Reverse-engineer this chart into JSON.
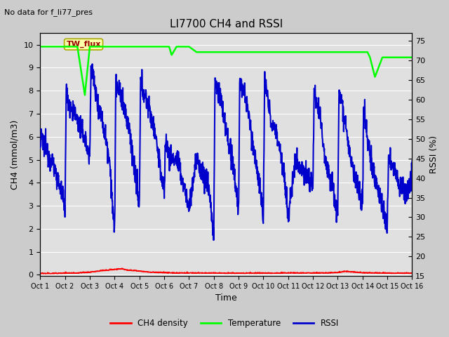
{
  "title": "LI7700 CH4 and RSSI",
  "subtitle": "No data for f_li77_pres",
  "xlabel": "Time",
  "ylabel_left": "CH4 (mmol/m3)",
  "ylabel_right": "RSSI (%)",
  "annotation": "TW_flux",
  "x_tick_labels": [
    "Oct 1",
    "Oct 2",
    "Oct 3",
    "Oct 4",
    "Oct 5",
    "Oct 6",
    "Oct 7",
    "Oct 8",
    "Oct 9",
    "Oct 10",
    "Oct 11",
    "Oct 12",
    "Oct 13",
    "Oct 14",
    "Oct 15",
    "Oct 16"
  ],
  "ylim_left": [
    -0.05,
    10.5
  ],
  "ylim_right": [
    15,
    77
  ],
  "yticks_left": [
    0.0,
    1.0,
    2.0,
    3.0,
    4.0,
    5.0,
    6.0,
    7.0,
    8.0,
    9.0,
    10.0
  ],
  "yticks_right": [
    15,
    20,
    25,
    30,
    35,
    40,
    45,
    50,
    55,
    60,
    65,
    70,
    75
  ],
  "background_color": "#cccccc",
  "plot_bg_color": "#e0e0e0",
  "grid_color": "#ffffff",
  "rssi_color": "#0000cc",
  "temp_color": "#00ff00",
  "ch4_color": "#ff0000",
  "rssi_lw": 1.5,
  "temp_lw": 1.8,
  "ch4_lw": 1.2,
  "rssi_key_x": [
    0,
    0.05,
    0.5,
    0.8,
    1.0,
    1.05,
    1.1,
    1.5,
    1.8,
    2.0,
    2.05,
    2.1,
    2.3,
    2.5,
    2.8,
    3.0,
    3.05,
    3.1,
    3.3,
    3.6,
    3.8,
    4.0,
    4.05,
    4.1,
    4.3,
    4.6,
    4.8,
    5.0,
    5.05,
    5.1,
    5.3,
    5.5,
    5.8,
    6.0,
    6.3,
    6.5,
    6.8,
    7.0,
    7.05,
    7.1,
    7.3,
    7.5,
    7.8,
    8.0,
    8.05,
    8.1,
    8.3,
    8.5,
    8.8,
    9.0,
    9.05,
    9.1,
    9.3,
    9.6,
    9.8,
    10.0,
    10.3,
    10.5,
    10.8,
    11.0,
    11.05,
    11.1,
    11.3,
    11.5,
    11.8,
    12.0,
    12.05,
    12.3,
    12.5,
    12.8,
    13.0,
    13.05,
    13.1,
    13.3,
    13.5,
    13.8,
    14.0,
    14.05,
    14.3,
    14.5,
    14.8,
    15.0
  ],
  "rssi_key_y": [
    48,
    50,
    44,
    38,
    32,
    63,
    60,
    55,
    50,
    45,
    70,
    67,
    60,
    55,
    45,
    25,
    65,
    63,
    60,
    52,
    42,
    32,
    65,
    63,
    60,
    53,
    45,
    35,
    50,
    48,
    45,
    45,
    38,
    32,
    45,
    42,
    38,
    25,
    65,
    63,
    60,
    52,
    42,
    32,
    65,
    64,
    60,
    52,
    40,
    30,
    65,
    63,
    55,
    50,
    43,
    30,
    45,
    43,
    40,
    38,
    63,
    60,
    55,
    45,
    38,
    30,
    63,
    55,
    45,
    37,
    32,
    60,
    55,
    46,
    40,
    33,
    28,
    45,
    42,
    38,
    36,
    42
  ],
  "temp_key_x": [
    0.0,
    1.0,
    1.05,
    1.5,
    1.8,
    2.0,
    5.2,
    5.3,
    5.5,
    6.0,
    6.3,
    13.2,
    13.3,
    13.5,
    13.8,
    14.0,
    15.0
  ],
  "temp_key_y": [
    9.92,
    9.92,
    9.92,
    9.92,
    7.8,
    9.92,
    9.92,
    9.55,
    9.92,
    9.92,
    9.68,
    9.68,
    9.45,
    8.6,
    9.45,
    9.45,
    9.45
  ],
  "ch4_key_x": [
    0,
    0.5,
    1.0,
    1.5,
    2.0,
    2.5,
    3.0,
    3.3,
    3.5,
    4.0,
    4.5,
    5.0,
    5.5,
    6.0,
    6.5,
    7.0,
    7.5,
    8.0,
    8.5,
    9.0,
    9.5,
    10.0,
    10.5,
    11.0,
    11.5,
    12.0,
    12.3,
    12.5,
    13.0,
    13.5,
    14.0,
    14.5,
    15.0
  ],
  "ch4_key_y": [
    0.05,
    0.05,
    0.06,
    0.07,
    0.1,
    0.17,
    0.22,
    0.25,
    0.2,
    0.15,
    0.1,
    0.08,
    0.07,
    0.07,
    0.07,
    0.07,
    0.06,
    0.06,
    0.06,
    0.06,
    0.06,
    0.07,
    0.07,
    0.07,
    0.07,
    0.09,
    0.14,
    0.12,
    0.08,
    0.07,
    0.06,
    0.06,
    0.06
  ]
}
